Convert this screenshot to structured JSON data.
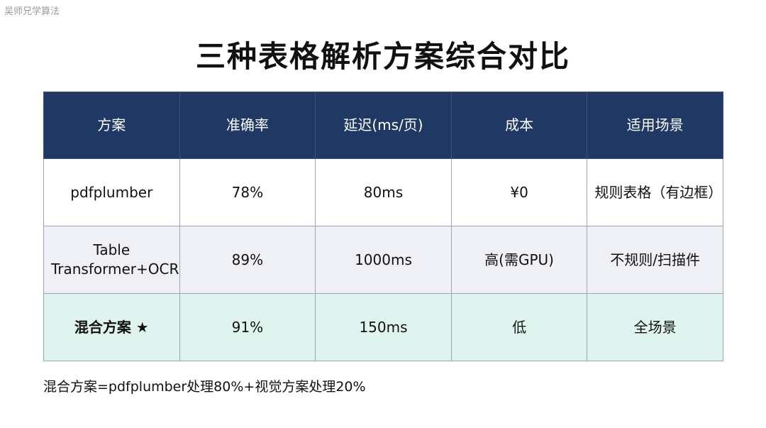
{
  "watermark": "吴师兄学算法",
  "title": "三种表格解析方案综合对比",
  "table": {
    "headers": [
      "方案",
      "准确率",
      "延迟(ms/页)",
      "成本",
      "适用场景"
    ],
    "rows": [
      [
        "pdfplumber",
        "78%",
        "80ms",
        "¥0",
        "规则表格（有边框）"
      ],
      [
        "Table Transformer+OCR",
        "89%",
        "1000ms",
        "高(需GPU)",
        "不规则/扫描件"
      ],
      [
        "混合方案 ★",
        "91%",
        "150ms",
        "低",
        "全场景"
      ]
    ]
  },
  "footnote": "混合方案=pdfplumber处理80%+视觉方案处理20%",
  "colors": {
    "header_bg": "#1f3864",
    "row_highlight_bg": "#dff3ef",
    "row_alt_bg": "#eef0f5"
  }
}
